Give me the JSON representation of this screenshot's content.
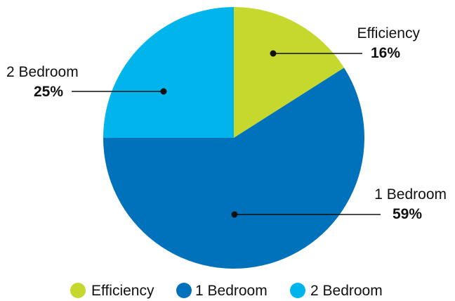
{
  "chart_data": {
    "type": "pie",
    "title": "",
    "slices": [
      {
        "label": "Efficiency",
        "value": 16,
        "value_text": "16%",
        "color": "#c5d82e"
      },
      {
        "label": "1 Bedroom",
        "value": 59,
        "value_text": "59%",
        "color": "#0072bc"
      },
      {
        "label": "2 Bedroom",
        "value": 25,
        "value_text": "25%",
        "color": "#00b5ec"
      }
    ],
    "legend": {
      "position": "bottom",
      "items": [
        {
          "label": "Efficiency",
          "color": "#c5d82e"
        },
        {
          "label": "1 Bedroom",
          "color": "#0072bc"
        },
        {
          "label": "2 Bedroom",
          "color": "#00b5ec"
        }
      ]
    }
  }
}
